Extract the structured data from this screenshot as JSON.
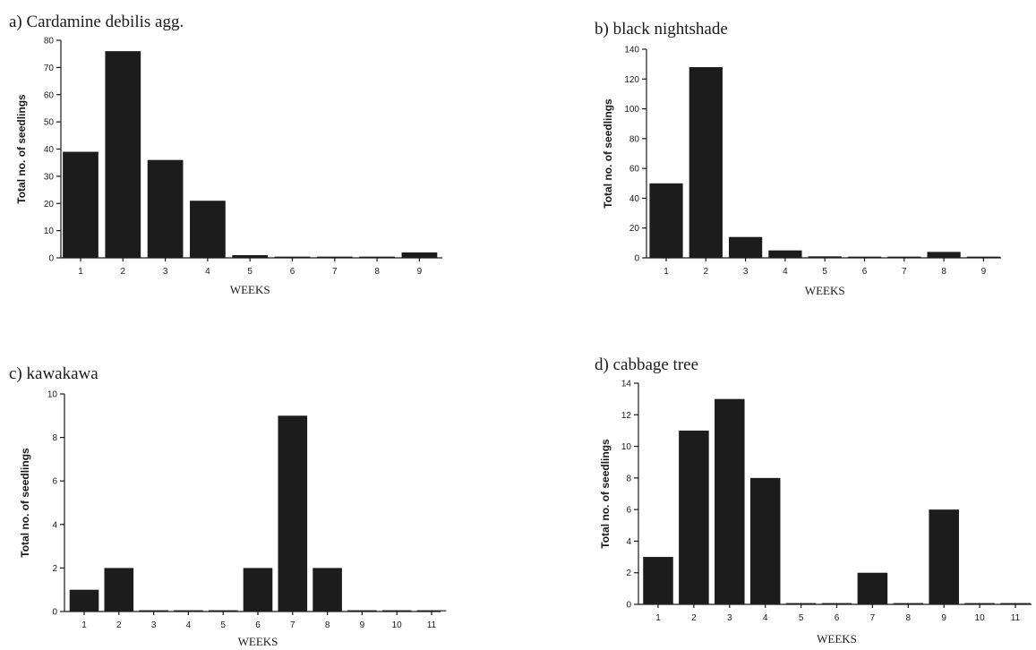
{
  "chart_data": [
    {
      "type": "bar",
      "title": "a) Cardamine debilis agg.",
      "xlabel": "WEEKS",
      "ylabel": "Total no. of seedlings",
      "categories": [
        "1",
        "2",
        "3",
        "4",
        "5",
        "6",
        "7",
        "8",
        "9"
      ],
      "values": [
        39,
        76,
        36,
        21,
        1,
        0,
        0,
        0,
        2
      ],
      "ylim": [
        0,
        80
      ],
      "yticks": [
        "0",
        "10",
        "20",
        "30",
        "40",
        "50",
        "60",
        "70",
        "80"
      ],
      "color": "#1c1c1c"
    },
    {
      "type": "bar",
      "title": "b) black nightshade",
      "xlabel": "WEEKS",
      "ylabel": "Total no. of seedlings",
      "categories": [
        "1",
        "2",
        "3",
        "4",
        "5",
        "6",
        "7",
        "8",
        "9"
      ],
      "values": [
        50,
        128,
        14,
        5,
        1,
        0,
        0,
        4,
        0
      ],
      "ylim": [
        0,
        140
      ],
      "yticks": [
        "0",
        "20",
        "40",
        "60",
        "80",
        "100",
        "120",
        "140"
      ],
      "color": "#1c1c1c"
    },
    {
      "type": "bar",
      "title": "c) kawakawa",
      "xlabel": "WEEKS",
      "ylabel": "Total no. of seedlings",
      "categories": [
        "1",
        "2",
        "3",
        "4",
        "5",
        "6",
        "7",
        "8",
        "9",
        "10",
        "11"
      ],
      "values": [
        1,
        2,
        0,
        0,
        0,
        2,
        9,
        2,
        0,
        0,
        0
      ],
      "ylim": [
        0,
        10
      ],
      "yticks": [
        "0",
        "2",
        "4",
        "6",
        "8",
        "10"
      ],
      "color": "#1c1c1c"
    },
    {
      "type": "bar",
      "title": "d) cabbage tree",
      "xlabel": "WEEKS",
      "ylabel": "Total no. of seedlings",
      "categories": [
        "1",
        "2",
        "3",
        "4",
        "5",
        "6",
        "7",
        "8",
        "9",
        "10",
        "11"
      ],
      "values": [
        3,
        11,
        13,
        8,
        0,
        0,
        2,
        0,
        6,
        0,
        0
      ],
      "ylim": [
        0,
        14
      ],
      "yticks": [
        "0",
        "2",
        "4",
        "6",
        "8",
        "10",
        "12",
        "14"
      ],
      "color": "#1c1c1c"
    }
  ]
}
